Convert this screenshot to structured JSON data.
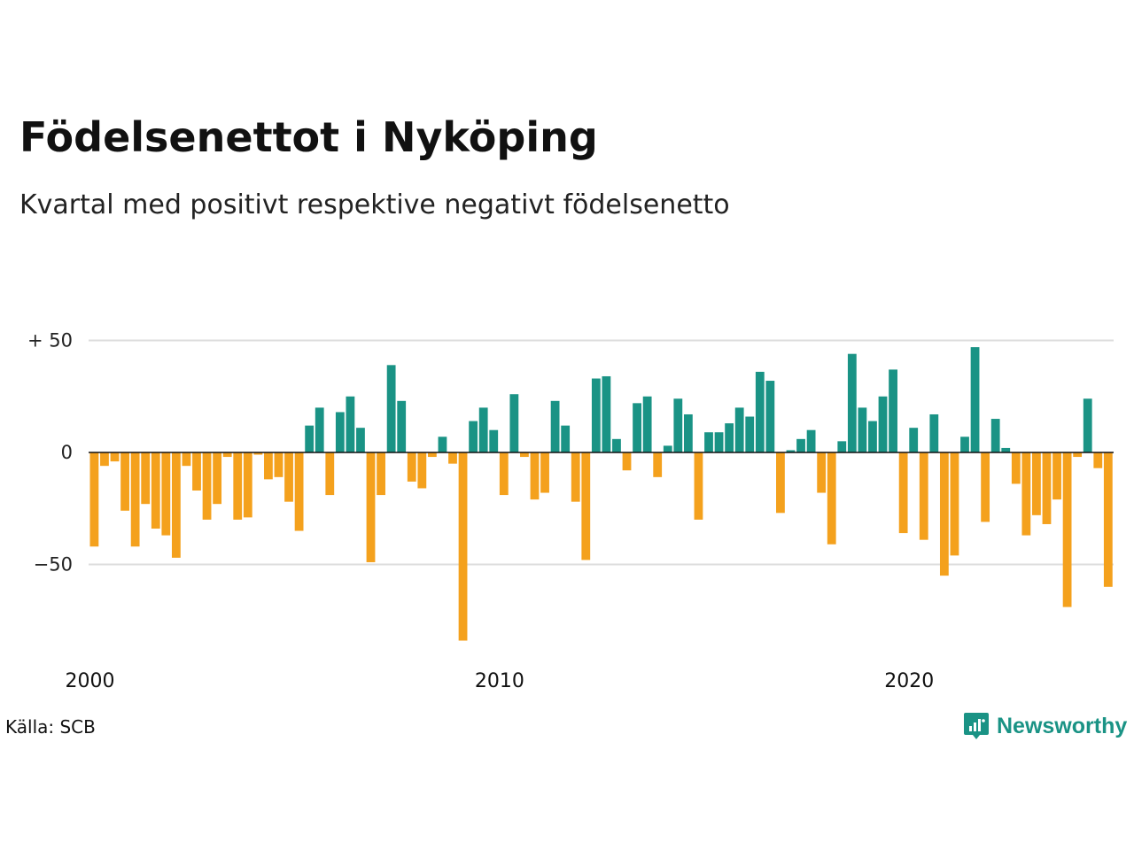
{
  "title": "Födelsenettot i Nyköping",
  "subtitle": "Kvartal med positivt respektive negativt födelsenetto",
  "source": "Källa: SCB",
  "logo_text": "Newsworthy",
  "colors": {
    "positive": "#1a9385",
    "negative": "#f4a11d",
    "grid": "#dddddd",
    "zero": "#111111",
    "brand": "#1a9385"
  },
  "chart_data": {
    "type": "bar",
    "title": "Födelsenettot i Nyköping",
    "subtitle": "Kvartal med positivt respektive negativt födelsenetto",
    "xlabel": "",
    "ylabel": "",
    "ylim": [
      -87,
      50
    ],
    "grid": true,
    "y_ticks": [
      50,
      0,
      -50
    ],
    "y_tick_labels": [
      "+ 50",
      "0",
      "−50"
    ],
    "x_ticks": [
      2000,
      2010,
      2020
    ],
    "x_tick_labels": [
      "2000",
      "2010",
      "2020"
    ],
    "x_start": 2000,
    "values": [
      -42,
      -6,
      -4,
      -26,
      -42,
      -23,
      -34,
      -37,
      -47,
      -6,
      -17,
      -30,
      -23,
      -2,
      -30,
      -29,
      -1,
      -12,
      -11,
      -22,
      -35,
      12,
      20,
      -19,
      18,
      25,
      11,
      -49,
      -19,
      39,
      23,
      -13,
      -16,
      -2,
      7,
      -5,
      -84,
      14,
      20,
      10,
      -19,
      26,
      -2,
      -21,
      -18,
      23,
      12,
      -22,
      -48,
      33,
      34,
      6,
      -8,
      22,
      25,
      -11,
      3,
      24,
      17,
      -30,
      9,
      9,
      13,
      20,
      16,
      36,
      32,
      -27,
      1,
      6,
      10,
      -18,
      -41,
      5,
      44,
      20,
      14,
      25,
      37,
      -36,
      11,
      -39,
      17,
      -55,
      -46,
      7,
      47,
      -31,
      15,
      2,
      -14,
      -37,
      -28,
      -32,
      -21,
      -69,
      -2,
      24,
      -7,
      -60
    ]
  }
}
